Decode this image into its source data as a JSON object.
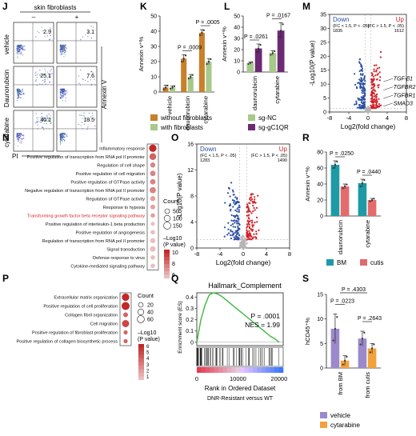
{
  "panels": {
    "J": "J",
    "K": "K",
    "L": "L",
    "M": "M",
    "N": "N",
    "O": "O",
    "P": "P",
    "Q": "Q",
    "R": "R",
    "S": "S"
  },
  "chart_data": [
    {
      "id": "J",
      "type": "scatter",
      "header": "skin fibroblasts",
      "columns": [
        "–",
        "+"
      ],
      "rows": [
        "vehicle",
        "Daunorubicin",
        "cytarabine"
      ],
      "values": [
        [
          2.9,
          3.1
        ],
        [
          25.1,
          7.6
        ],
        [
          40.1,
          18.5
        ]
      ],
      "xlabel": "PI",
      "ylabel": "Annexin V",
      "color": "#4a4ac8"
    },
    {
      "id": "K",
      "type": "bar",
      "categories": [
        "vehicle",
        "daunorubicin",
        "cytarabine"
      ],
      "series": [
        {
          "name": "without fibroblasts",
          "values": [
            3,
            22,
            39
          ],
          "errors": [
            1.5,
            2.5,
            2
          ],
          "color": "#c8802a"
        },
        {
          "name": "with fibroblasts",
          "values": [
            3,
            10,
            20
          ],
          "errors": [
            1,
            1.5,
            2
          ],
          "color": "#a6c98a"
        }
      ],
      "ylabel": "Annexin v⁺%",
      "ylim": [
        0,
        50
      ],
      "yticks": [
        0,
        10,
        20,
        30,
        40,
        50
      ],
      "annotations": [
        {
          "text": "P = .0009",
          "category": "daunorubicin"
        },
        {
          "text": "P = .0005",
          "category": "cytarabine"
        }
      ]
    },
    {
      "id": "L",
      "type": "bar",
      "categories": [
        "daunorubicin",
        "cytarabine"
      ],
      "series": [
        {
          "name": "sg-NC",
          "values": [
            8,
            17
          ],
          "errors": [
            1,
            2
          ],
          "color": "#a6c98a"
        },
        {
          "name": "sg-gC1QR",
          "values": [
            21,
            37
          ],
          "errors": [
            4,
            7
          ],
          "color": "#6b2a73"
        }
      ],
      "ylabel": "Annexin v⁺%",
      "ylim": [
        0,
        50
      ],
      "yticks": [
        0,
        10,
        20,
        30,
        40,
        50
      ],
      "annotations": [
        {
          "text": "P = .0261",
          "category": "daunorubicin"
        },
        {
          "text": "P = .0167",
          "category": "cytarabine"
        }
      ]
    },
    {
      "id": "M",
      "type": "scatter",
      "xlabel": "Log2(fold change)",
      "ylabel": "-Log10(P value)",
      "xlim": [
        -8,
        8
      ],
      "ylim": [
        0,
        35
      ],
      "xticks": [
        -8,
        -4,
        0,
        4,
        8
      ],
      "yticks": [
        0,
        5,
        10,
        15,
        20,
        25,
        30,
        35
      ],
      "down": {
        "label": "Down",
        "criteria": "(FC < 1.5, P < .05)",
        "count": "1835",
        "color": "#2b4fa3"
      },
      "up": {
        "label": "Up",
        "criteria": "(FC > 1.5, P < .05)",
        "count": "1612",
        "color": "#d21f26"
      },
      "genes": [
        "TGF-β1",
        "TGFBR2",
        "TGFBR1",
        "SMAD3"
      ]
    },
    {
      "id": "N",
      "type": "scatter",
      "terms": [
        "Inflammatory response",
        "Positive regulation of transcription from RNA pol II promoter",
        "Regulation of cell shape",
        "Positive regulation of cell migration",
        "Positive regulation of GTPase activity",
        "Negative regulation of transcription from RNA pol II promoter",
        "Regulation of GTPase activity",
        "Response to hypoxia",
        "Transforming growth factor beta receptor signaling pathway",
        "Positive regulation of interleukin-1 beta production",
        "Positive regulation of angiogenesis",
        "Regulation of transcription from RNA pol II promoter",
        "Signal transduction",
        "Defense response to virus",
        "Cytokine-mediated signaling pathway"
      ],
      "highlight_index": 8,
      "counts": [
        160,
        130,
        60,
        70,
        70,
        100,
        60,
        50,
        40,
        30,
        40,
        60,
        80,
        40,
        40
      ],
      "logp": [
        11,
        9,
        8,
        8,
        8,
        8,
        7,
        7,
        7,
        6,
        6,
        6,
        6,
        6,
        6
      ],
      "count_title": "Count",
      "count_legend": [
        50,
        100,
        150
      ],
      "color_title": "–Log10\n(P value)",
      "color_legend": [
        6,
        8,
        10
      ]
    },
    {
      "id": "O",
      "type": "scatter",
      "xlabel": "Log2(fold change)",
      "ylabel": "-Log10(P value)",
      "xlim": [
        -8,
        8
      ],
      "ylim": [
        0,
        16
      ],
      "xticks": [
        -8,
        -4,
        0,
        4,
        8
      ],
      "yticks": [
        0,
        4,
        8,
        12,
        16
      ],
      "down": {
        "label": "Down",
        "criteria": "(FC < 1.5, P < .05)",
        "count": "1283",
        "color": "#2b4fa3"
      },
      "up": {
        "label": "Up",
        "criteria": "(FC > 1.5, P < .05)",
        "count": "1490",
        "color": "#d21f26"
      }
    },
    {
      "id": "P",
      "type": "scatter",
      "terms": [
        "Extracellular matrix organization",
        "Positive regulation of cell proliferation",
        "Collagen fibril organization",
        "Cell migration",
        "Positive regulation of fibroblast proliferation",
        "Positive regulation of collagen biosynthetic process"
      ],
      "counts": [
        50,
        60,
        15,
        45,
        10,
        10
      ],
      "logp": [
        6,
        6,
        4,
        5,
        4,
        4
      ],
      "count_title": "Count",
      "count_legend": [
        20,
        40,
        60
      ],
      "color_title": "–Log10\n(P value)",
      "color_legend": [
        1,
        2,
        3,
        4,
        5,
        6
      ]
    },
    {
      "id": "Q",
      "type": "line",
      "title": "Hallmark_Complement",
      "stats": [
        "P = .0001",
        "NES = 1.99"
      ],
      "xlabel": "Rank in Ordered Dataset",
      "xsub": "DNR-Resistant versus WT",
      "ylabel": "Enrichment score (ES)",
      "ylim": [
        0,
        0.4
      ],
      "yticks": [
        0,
        0.1,
        0.2,
        0.3,
        0.4
      ],
      "xticks": [
        0,
        10000,
        20000
      ],
      "x": [
        0,
        1000,
        2000,
        3000,
        4000,
        5000,
        6000,
        7000,
        8000,
        9000,
        10000,
        11000,
        12000,
        13000,
        14000,
        15000,
        16000,
        17000,
        18000,
        19000,
        20000
      ],
      "y": [
        0.0,
        0.2,
        0.33,
        0.42,
        0.44,
        0.43,
        0.41,
        0.38,
        0.35,
        0.32,
        0.29,
        0.26,
        0.23,
        0.2,
        0.17,
        0.14,
        0.11,
        0.08,
        0.05,
        0.03,
        0.0
      ]
    },
    {
      "id": "R",
      "type": "bar",
      "categories": [
        "daunorubicin",
        "cytarabine"
      ],
      "series": [
        {
          "name": "BM",
          "values": [
            64,
            41
          ],
          "errors": [
            5,
            5
          ],
          "color": "#1e9aa6"
        },
        {
          "name": "cutis",
          "values": [
            37,
            20
          ],
          "errors": [
            3,
            2
          ],
          "color": "#e46b6b"
        }
      ],
      "ylabel": "Annexin v⁺%",
      "ylim": [
        0,
        80
      ],
      "yticks": [
        0,
        20,
        40,
        60,
        80
      ],
      "annotations": [
        {
          "text": "P = .0250",
          "category": "daunorubicin"
        },
        {
          "text": "P = .0440",
          "category": "cytarabine"
        }
      ]
    },
    {
      "id": "S",
      "type": "bar",
      "categories": [
        "from BM",
        "from cutis"
      ],
      "series": [
        {
          "name": "vehicle",
          "values": [
            8,
            6
          ],
          "errors": [
            3,
            1.5
          ],
          "color": "#9b8acb"
        },
        {
          "name": "cytarabine",
          "values": [
            1.5,
            4
          ],
          "errors": [
            1,
            1
          ],
          "color": "#f2a23c"
        }
      ],
      "ylabel": "hCD45⁺%",
      "ylim": [
        0,
        15
      ],
      "yticks": [
        0,
        5,
        10,
        15
      ],
      "annotations": [
        {
          "text": "P = .4303",
          "category": "span"
        },
        {
          "text": "P = .0223",
          "category": "from BM"
        },
        {
          "text": "P = .2643",
          "category": "from cutis"
        }
      ]
    }
  ]
}
